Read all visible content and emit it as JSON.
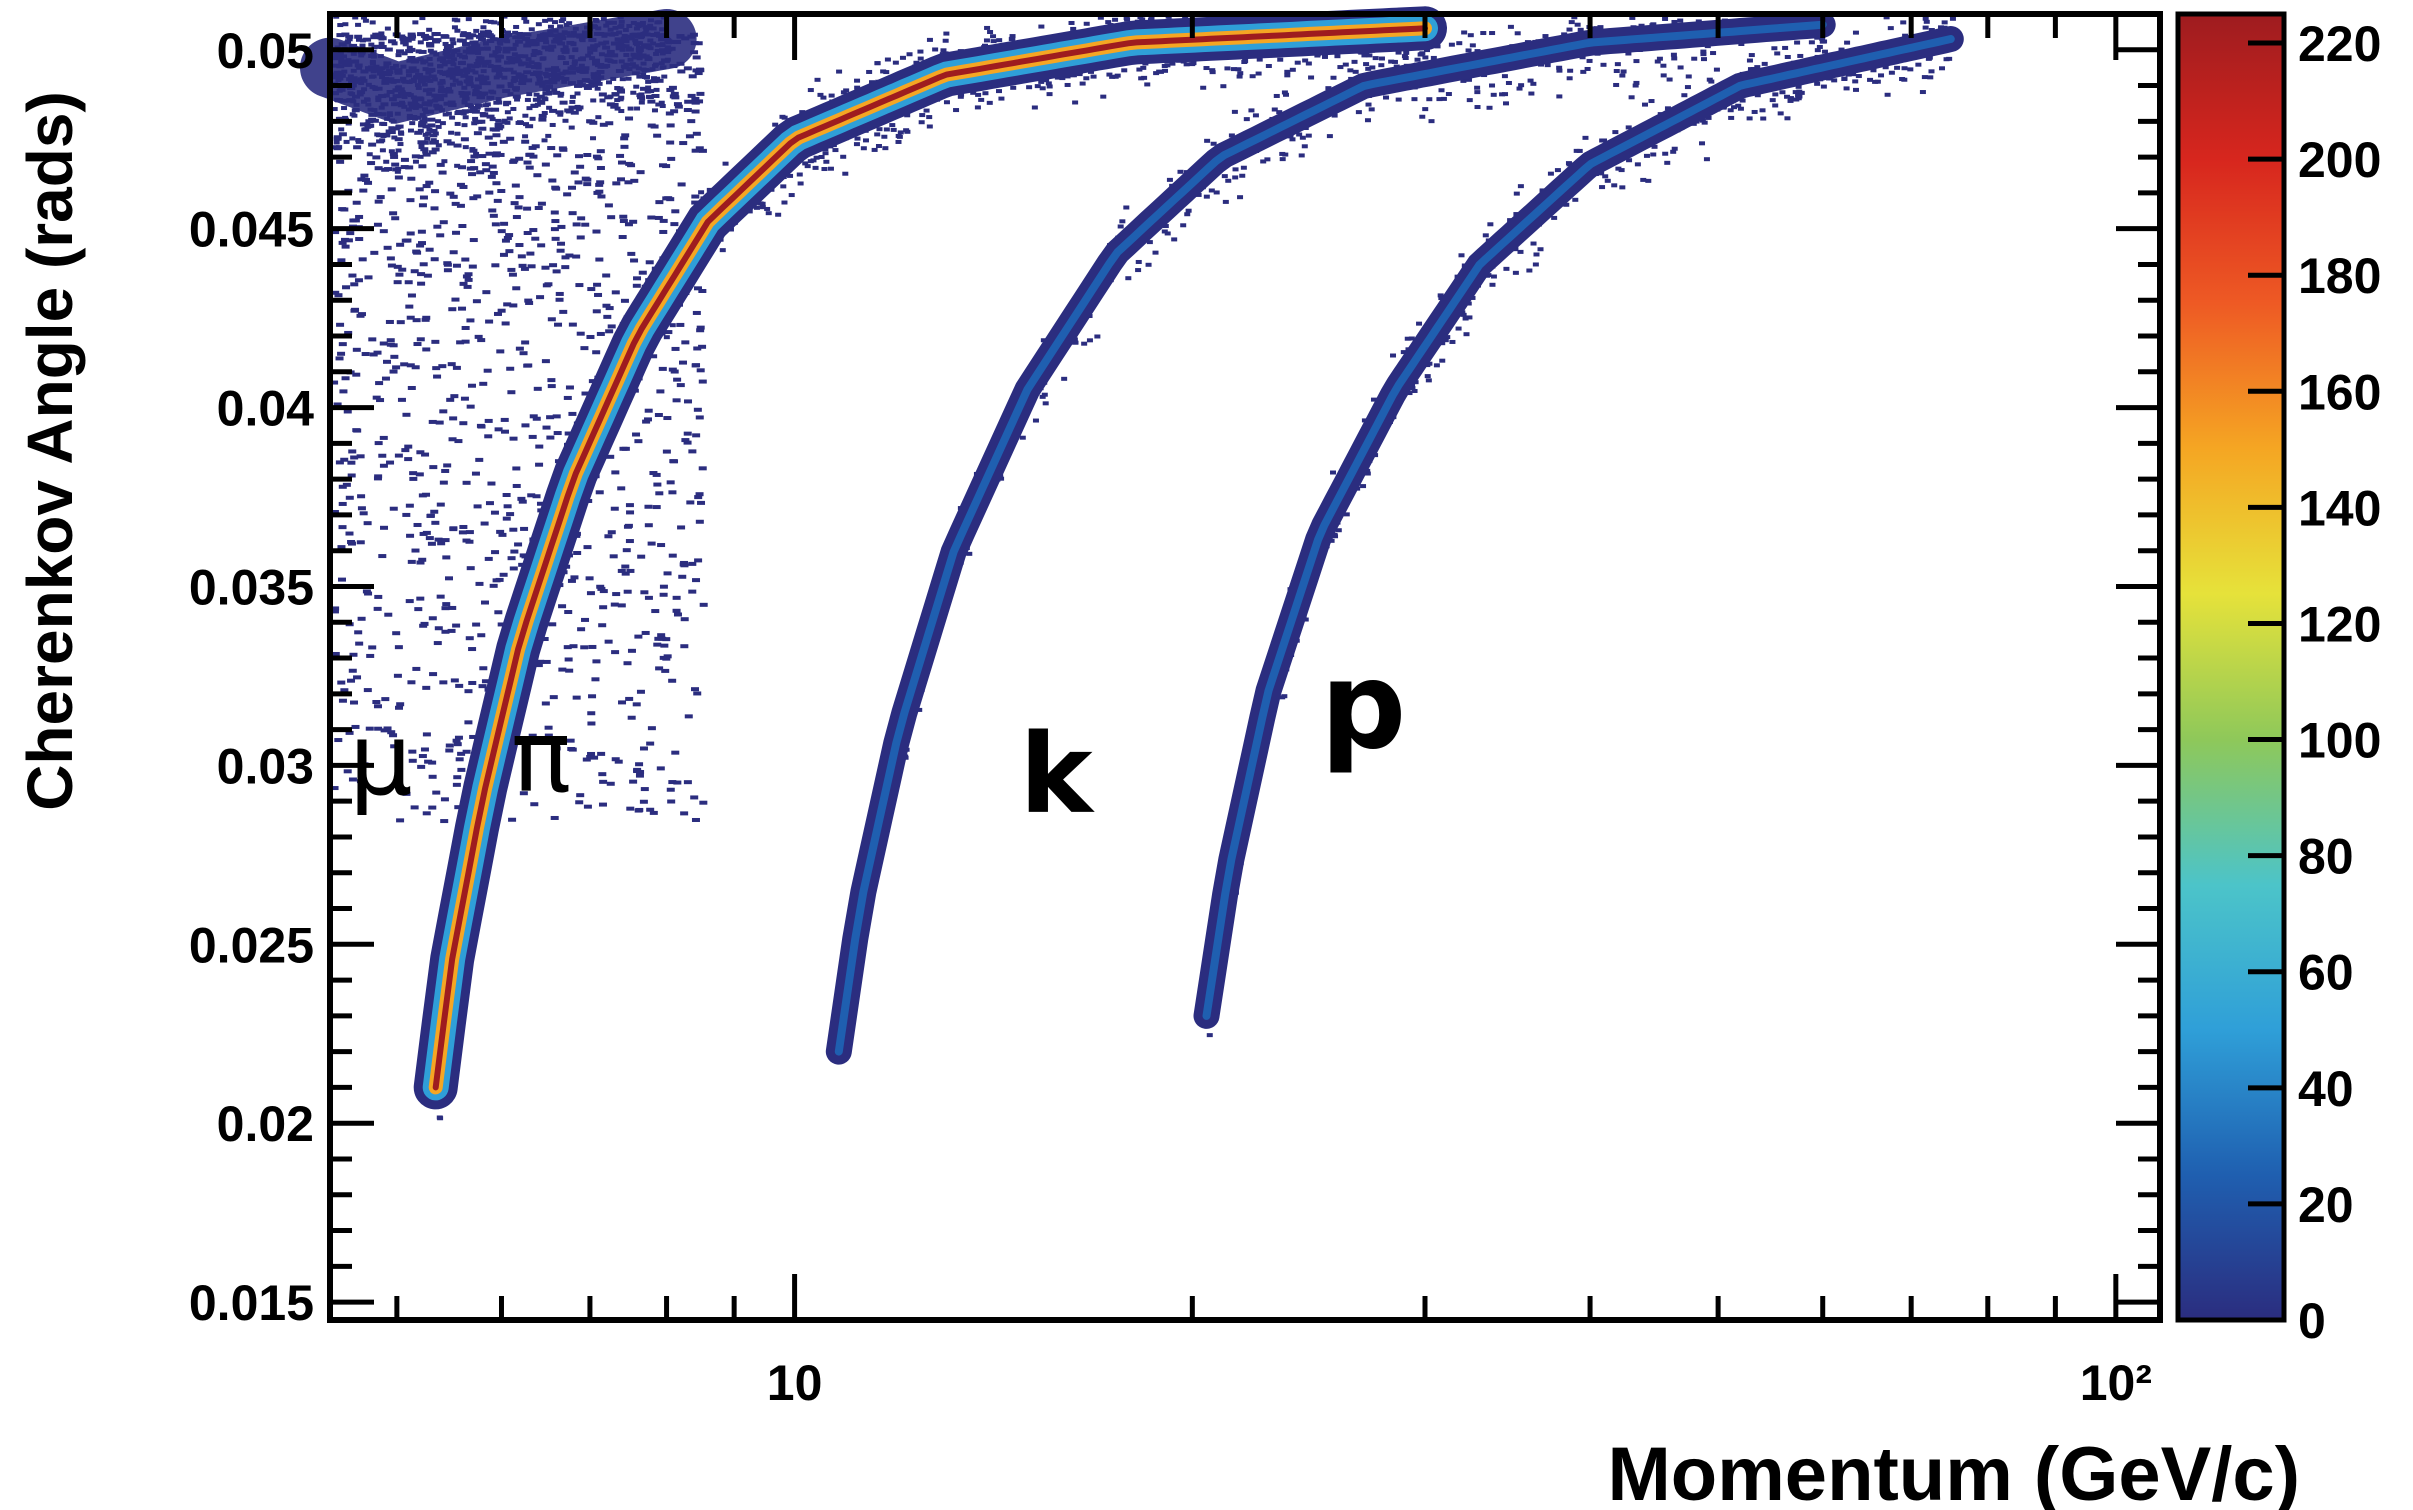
{
  "chart_data": {
    "type": "heatmap",
    "title": "",
    "xlabel": "Momentum (GeV/c)",
    "ylabel": "Cherenkov Angle (rads)",
    "x_scale": "log",
    "xlim": [
      4.45,
      108
    ],
    "ylim": [
      0.0145,
      0.051
    ],
    "x_tick_labels": [
      {
        "value": 10,
        "label": "10"
      },
      {
        "value": 100,
        "label": "10²"
      }
    ],
    "y_tick_labels": [
      {
        "value": 0.015,
        "label": "0.015"
      },
      {
        "value": 0.02,
        "label": "0.02"
      },
      {
        "value": 0.025,
        "label": "0.025"
      },
      {
        "value": 0.03,
        "label": "0.03"
      },
      {
        "value": 0.035,
        "label": "0.035"
      },
      {
        "value": 0.04,
        "label": "0.04"
      },
      {
        "value": 0.045,
        "label": "0.045"
      },
      {
        "value": 0.05,
        "label": "0.05"
      }
    ],
    "colorbar": {
      "range": [
        0,
        225
      ],
      "tick_labels": [
        {
          "value": 0,
          "label": "0"
        },
        {
          "value": 20,
          "label": "20"
        },
        {
          "value": 40,
          "label": "40"
        },
        {
          "value": 60,
          "label": "60"
        },
        {
          "value": 80,
          "label": "80"
        },
        {
          "value": 100,
          "label": "100"
        },
        {
          "value": 120,
          "label": "120"
        },
        {
          "value": 140,
          "label": "140"
        },
        {
          "value": 160,
          "label": "160"
        },
        {
          "value": 180,
          "label": "180"
        },
        {
          "value": 200,
          "label": "200"
        },
        {
          "value": 220,
          "label": "220"
        }
      ],
      "colors": [
        "#2b2d7f",
        "#1f5fb0",
        "#2f9fd8",
        "#4cc4c9",
        "#8ec85a",
        "#e6e23a",
        "#f5a623",
        "#ee5a24",
        "#d7261e",
        "#9e1c1f"
      ]
    },
    "bands": [
      {
        "label": "μ",
        "points": [
          [
            4.45,
            0.0495
          ],
          [
            5,
            0.0488
          ],
          [
            6,
            0.0495
          ],
          [
            8,
            0.0503
          ]
        ],
        "peak_count": 20
      },
      {
        "label": "π",
        "points": [
          [
            5.35,
            0.021
          ],
          [
            5.5,
            0.0245
          ],
          [
            5.8,
            0.029
          ],
          [
            6.2,
            0.0335
          ],
          [
            6.8,
            0.038
          ],
          [
            7.6,
            0.042
          ],
          [
            8.6,
            0.0452
          ],
          [
            10,
            0.0475
          ],
          [
            13,
            0.0493
          ],
          [
            18,
            0.0502
          ],
          [
            30,
            0.0506
          ]
        ],
        "peak_count": 220
      },
      {
        "label": "k",
        "points": [
          [
            10.8,
            0.022
          ],
          [
            11.2,
            0.026
          ],
          [
            12,
            0.031
          ],
          [
            13.2,
            0.036
          ],
          [
            15,
            0.0405
          ],
          [
            17.5,
            0.0443
          ],
          [
            21,
            0.047
          ],
          [
            27,
            0.049
          ],
          [
            40,
            0.0502
          ],
          [
            60,
            0.0507
          ]
        ],
        "peak_count": 25
      },
      {
        "label": "p",
        "points": [
          [
            20.5,
            0.023
          ],
          [
            21.3,
            0.027
          ],
          [
            22.8,
            0.032
          ],
          [
            25,
            0.0365
          ],
          [
            28.5,
            0.0405
          ],
          [
            33,
            0.044
          ],
          [
            40,
            0.0468
          ],
          [
            52,
            0.049
          ],
          [
            75,
            0.0503
          ]
        ],
        "peak_count": 15
      }
    ]
  }
}
